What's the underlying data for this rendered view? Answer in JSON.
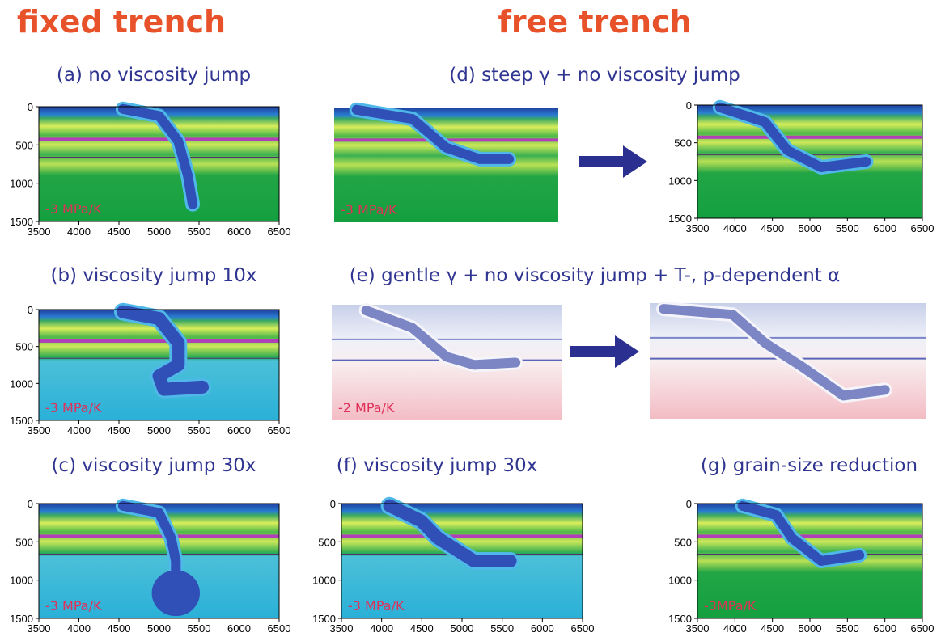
{
  "header": {
    "left": "fixed trench",
    "right": "free trench"
  },
  "xticks": [
    3500,
    4000,
    4500,
    5000,
    5500,
    6000,
    6500
  ],
  "yticks": [
    0,
    500,
    1000,
    1500
  ],
  "panels": [
    {
      "title": "(a) no viscosity jump",
      "annotation": "-3 MPa/K"
    },
    {
      "title": "(b) viscosity jump 10x",
      "annotation": "-3 MPa/K"
    },
    {
      "title": "(c) viscosity jump 30x",
      "annotation": "-3 MPa/K"
    },
    {
      "title": "(d) steep γ + no viscosity jump",
      "annotation": "-3 MPa/K"
    },
    {
      "title": "(e) gentle γ + no viscosity jump + T-, p-dependent α",
      "annotation": "-2 MPa/K"
    },
    {
      "title": "(f) viscosity jump 30x",
      "annotation": "-3 MPa/K"
    },
    {
      "title": "(g) grain-size reduction",
      "annotation": "-3MPa/K"
    }
  ]
}
